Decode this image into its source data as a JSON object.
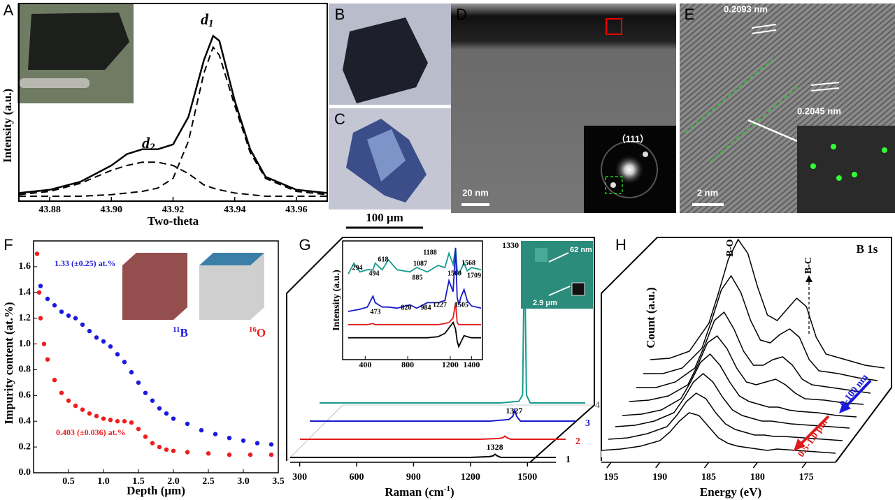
{
  "panel_labels": [
    "A",
    "B",
    "C",
    "D",
    "E",
    "F",
    "G",
    "H"
  ],
  "images": {
    "scale_bar_bc": "100 μm",
    "d_scale": "20 nm",
    "d_diffraction": "（111）",
    "e_spacing_1": "0.2093 nm",
    "e_spacing_2": "0.2045 nm",
    "e_scale": "2 nm",
    "g_inset_1": "62 nm",
    "g_inset_2": "2.9 μm"
  },
  "chart_data": [
    {
      "type": "line",
      "xlabel": "Two-theta",
      "ylabel": "Intensity (a.u.)",
      "xlim": [
        43.87,
        43.97
      ],
      "ylim": [
        -0.02,
        1.2
      ],
      "xticks": [
        43.88,
        {
          "value": 43.9,
          "label": "43.90"
        },
        43.92,
        43.94,
        43.96
      ],
      "x": [
        43.87,
        43.88,
        43.89,
        43.9,
        43.905,
        43.91,
        43.915,
        43.92,
        43.925,
        43.93,
        43.933,
        43.935,
        43.94,
        43.945,
        43.95,
        43.96,
        43.97
      ],
      "series": [
        {
          "color": "#000000",
          "dashed": false,
          "values": [
            0.03,
            0.05,
            0.1,
            0.2,
            0.27,
            0.3,
            0.3,
            0.33,
            0.5,
            0.85,
            1.0,
            0.97,
            0.6,
            0.3,
            0.13,
            0.05,
            0.03
          ]
        },
        {
          "color": "#000000",
          "dashed": true,
          "values": [
            0.01,
            0.01,
            0.01,
            0.02,
            0.03,
            0.04,
            0.06,
            0.12,
            0.35,
            0.77,
            0.93,
            0.88,
            0.57,
            0.28,
            0.12,
            0.04,
            0.02
          ]
        },
        {
          "color": "#000000",
          "dashed": true,
          "values": [
            0.02,
            0.04,
            0.09,
            0.17,
            0.2,
            0.22,
            0.22,
            0.2,
            0.15,
            0.08,
            0.06,
            0.05,
            0.03,
            0.02,
            0.01,
            0.01,
            0.01
          ]
        }
      ],
      "peak_labels": [
        {
          "text": "d",
          "sub": "1"
        },
        {
          "text": "d",
          "sub": "2"
        }
      ]
    },
    {
      "type": "scatter",
      "xlabel": "Depth (μm)",
      "ylabel": "Impurity content (at.%)",
      "xlim": [
        0,
        3.5
      ],
      "ylim": [
        0,
        1.8
      ],
      "xticks": [
        0.5,
        {
          "value": 1,
          "label": "1.0"
        },
        1.5,
        {
          "value": 2,
          "label": "2.0"
        },
        2.5,
        {
          "value": 3,
          "label": "3.0"
        },
        3.5
      ],
      "yticks": [
        {
          "value": 0,
          "label": "0.0"
        },
        0.2,
        0.4,
        0.6,
        0.8,
        {
          "value": 1,
          "label": "1.0"
        },
        1.2,
        1.4,
        1.6
      ],
      "series": [
        {
          "color": "#1a1adf",
          "label": "1.33 (±0.25) at.%",
          "sup": "11",
          "element": "B",
          "x": [
            0.1,
            0.2,
            0.3,
            0.4,
            0.5,
            0.6,
            0.7,
            0.8,
            0.9,
            1.0,
            1.1,
            1.2,
            1.3,
            1.4,
            1.5,
            1.6,
            1.7,
            1.8,
            1.9,
            2.0,
            2.2,
            2.4,
            2.6,
            2.8,
            3.0,
            3.2,
            3.4
          ],
          "values": [
            1.45,
            1.35,
            1.3,
            1.25,
            1.22,
            1.2,
            1.15,
            1.1,
            1.05,
            1.02,
            0.98,
            0.92,
            0.86,
            0.78,
            0.7,
            0.62,
            0.56,
            0.5,
            0.46,
            0.42,
            0.38,
            0.33,
            0.3,
            0.27,
            0.25,
            0.23,
            0.22
          ]
        },
        {
          "color": "#ee1c1c",
          "label": "0.403 (±0.036) at.%",
          "sup": "16",
          "element": "O",
          "x": [
            0.05,
            0.08,
            0.1,
            0.15,
            0.2,
            0.3,
            0.4,
            0.5,
            0.6,
            0.7,
            0.8,
            0.9,
            1.0,
            1.1,
            1.2,
            1.3,
            1.4,
            1.5,
            1.6,
            1.7,
            1.8,
            1.9,
            2.0,
            2.2,
            2.5,
            2.8,
            3.1,
            3.4
          ],
          "values": [
            1.7,
            1.4,
            1.2,
            1.0,
            0.88,
            0.72,
            0.62,
            0.56,
            0.52,
            0.49,
            0.46,
            0.44,
            0.42,
            0.41,
            0.4,
            0.4,
            0.39,
            0.34,
            0.28,
            0.23,
            0.2,
            0.18,
            0.17,
            0.16,
            0.15,
            0.14,
            0.14,
            0.14
          ]
        }
      ]
    },
    {
      "type": "waterfall",
      "xlabel": "Raman (cm",
      "xlabel_sup": "-1",
      "xlabel_end": ")",
      "xlim": [
        250,
        1650
      ],
      "ylim": [
        0,
        1
      ],
      "xticks": [
        300,
        600,
        900,
        1200,
        1500
      ],
      "x": [
        250,
        1200,
        1300,
        1320,
        1330,
        1340,
        1360,
        1650
      ],
      "series": [
        {
          "name": "1",
          "color": "#000000",
          "label_color": "#000000",
          "peak_label": 1328,
          "values": [
            0,
            0,
            0.005,
            0.01,
            0.02,
            0.01,
            0,
            0
          ]
        },
        {
          "name": "2",
          "color": "#e01b1b",
          "label_color": "#e01b1b",
          "values": [
            0,
            0,
            0.005,
            0.01,
            0.02,
            0.01,
            0,
            0
          ]
        },
        {
          "name": "3",
          "color": "#1a1acc",
          "label_color": "#1a1acc",
          "peak_label": 1327,
          "values": [
            0,
            0,
            0.01,
            0.03,
            0.07,
            0.03,
            0,
            0
          ]
        },
        {
          "name": "4",
          "color": "#169b8f",
          "label_color": "#888888",
          "peak_label": 1330,
          "values": [
            0,
            0,
            0.01,
            0.05,
            1.0,
            0.05,
            0,
            0
          ]
        }
      ]
    },
    {
      "type": "line",
      "ylabel": "Intensity (a.u.)",
      "xlim": [
        240,
        1490
      ],
      "ylim": [
        0,
        1.05
      ],
      "xticks": [
        400,
        800,
        1200,
        1400
      ],
      "x": [
        240,
        294,
        350,
        420,
        473,
        494,
        560,
        618,
        700,
        820,
        885,
        984,
        1087,
        1150,
        1188,
        1227,
        1250,
        1265,
        1280,
        1300,
        1330,
        1360,
        1400,
        1490
      ],
      "series": [
        {
          "color": "#169b8f",
          "values": [
            0.76,
            0.86,
            0.78,
            0.8,
            0.8,
            0.86,
            0.8,
            0.89,
            0.8,
            0.78,
            0.82,
            0.78,
            0.84,
            0.82,
            0.95,
            0.85,
            1.0,
            0.8,
            0.76,
            0.8,
            0.86,
            0.79,
            0.82,
            0.8
          ]
        },
        {
          "color": "#1a1acc",
          "values": [
            0.42,
            0.43,
            0.44,
            0.46,
            0.56,
            0.5,
            0.46,
            0.46,
            0.45,
            0.48,
            0.45,
            0.5,
            0.5,
            0.52,
            0.7,
            0.6,
            1.0,
            0.55,
            0.48,
            0.55,
            0.62,
            0.52,
            0.47,
            0.45
          ]
        },
        {
          "color": "#e01b1b",
          "values": [
            0.3,
            0.3,
            0.3,
            0.3,
            0.31,
            0.3,
            0.3,
            0.3,
            0.3,
            0.3,
            0.3,
            0.3,
            0.3,
            0.31,
            0.32,
            0.36,
            0.5,
            0.32,
            0.3,
            0.3,
            0.3,
            0.3,
            0.3,
            0.3
          ]
        },
        {
          "color": "#000000",
          "values": [
            0.18,
            0.18,
            0.18,
            0.18,
            0.18,
            0.18,
            0.18,
            0.18,
            0.18,
            0.18,
            0.18,
            0.18,
            0.19,
            0.22,
            0.27,
            0.32,
            0.26,
            0.15,
            0.1,
            0.14,
            0.2,
            0.19,
            0.18,
            0.18
          ]
        }
      ],
      "peak_labels": [
        294,
        494,
        618,
        885,
        1087,
        1188,
        1560,
        1568,
        1709,
        473,
        820,
        984,
        1227,
        1505
      ]
    },
    {
      "type": "waterfall3d",
      "xlabel": "Energy (eV)",
      "ylabel": "Count (a.u.)",
      "xlim": [
        196,
        172
      ],
      "ylim": [
        0,
        1
      ],
      "xticks": [
        195,
        190,
        185,
        180,
        175
      ],
      "x": [
        196,
        194,
        192,
        190,
        189,
        188,
        187,
        186,
        185,
        184,
        183,
        182,
        181,
        180,
        179,
        178,
        176,
        174,
        172
      ],
      "series": [
        {
          "values": [
            0.05,
            0.06,
            0.08,
            0.12,
            0.18,
            0.26,
            0.32,
            0.3,
            0.22,
            0.14,
            0.1,
            0.08,
            0.07,
            0.06,
            0.05,
            0.06,
            0.05,
            0.04,
            0.03
          ]
        },
        {
          "values": [
            0.05,
            0.06,
            0.09,
            0.14,
            0.22,
            0.32,
            0.38,
            0.34,
            0.24,
            0.16,
            0.12,
            0.1,
            0.08,
            0.08,
            0.07,
            0.07,
            0.06,
            0.05,
            0.04
          ]
        },
        {
          "values": [
            0.06,
            0.07,
            0.1,
            0.16,
            0.26,
            0.38,
            0.44,
            0.38,
            0.27,
            0.18,
            0.14,
            0.12,
            0.1,
            0.1,
            0.09,
            0.08,
            0.07,
            0.06,
            0.05
          ]
        },
        {
          "values": [
            0.06,
            0.07,
            0.1,
            0.18,
            0.3,
            0.44,
            0.5,
            0.42,
            0.3,
            0.2,
            0.16,
            0.14,
            0.12,
            0.12,
            0.1,
            0.09,
            0.08,
            0.06,
            0.05
          ]
        },
        {
          "values": [
            0.08,
            0.09,
            0.12,
            0.2,
            0.34,
            0.5,
            0.55,
            0.46,
            0.32,
            0.22,
            0.2,
            0.22,
            0.24,
            0.2,
            0.14,
            0.1,
            0.09,
            0.07,
            0.06
          ]
        },
        {
          "values": [
            0.1,
            0.1,
            0.14,
            0.24,
            0.4,
            0.58,
            0.64,
            0.52,
            0.36,
            0.26,
            0.26,
            0.3,
            0.32,
            0.26,
            0.16,
            0.12,
            0.1,
            0.08,
            0.06
          ]
        },
        {
          "values": [
            0.12,
            0.12,
            0.16,
            0.3,
            0.5,
            0.72,
            0.82,
            0.7,
            0.5,
            0.36,
            0.34,
            0.4,
            0.44,
            0.38,
            0.22,
            0.14,
            0.12,
            0.09,
            0.07
          ]
        },
        {
          "values": [
            0.14,
            0.15,
            0.2,
            0.4,
            0.62,
            0.86,
            1.0,
            0.9,
            0.66,
            0.46,
            0.42,
            0.5,
            0.58,
            0.52,
            0.3,
            0.18,
            0.14,
            0.1,
            0.08
          ]
        }
      ],
      "annotations": {
        "b_o": "B-O",
        "b_c": "B-C",
        "title": "B 1s",
        "shallow": "0-100 nm",
        "deep": "0.5-1.0 μm"
      }
    }
  ]
}
